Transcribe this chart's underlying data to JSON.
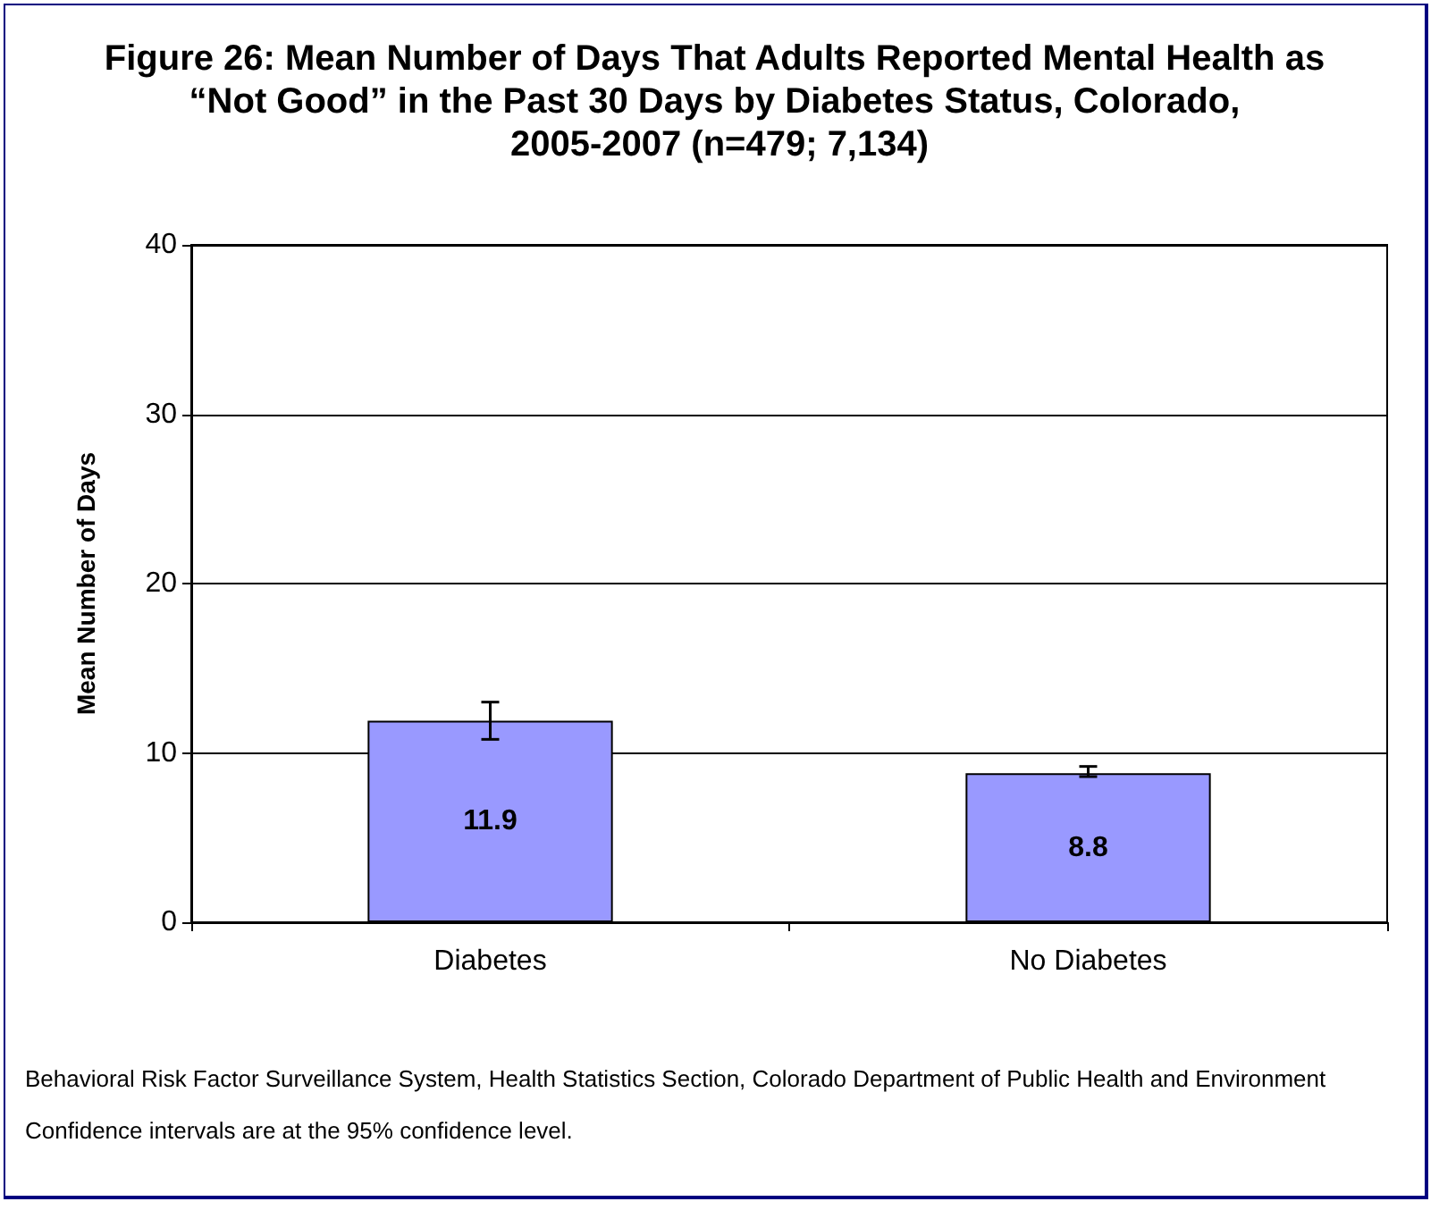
{
  "chart_data": {
    "type": "bar",
    "title": "Figure 26: Mean Number of Days That Adults Reported Mental Health as “Not Good” in the Past 30 Days by Diabetes Status, Colorado, 2005-2007 (n=479; 7,134)",
    "ylabel": "Mean Number of Days",
    "categories": [
      "Diabetes",
      "No Diabetes"
    ],
    "values": [
      11.9,
      8.8
    ],
    "errors": [
      [
        10.8,
        13.0
      ],
      [
        8.6,
        9.2
      ]
    ],
    "color": "#9999ff",
    "ylim": [
      0,
      40
    ],
    "yticks": [
      0,
      10,
      20,
      30,
      40
    ],
    "grid": "y",
    "data_labels": true,
    "annotations": [
      "Behavioral Risk Factor Surveillance System, Health Statistics Section, Colorado Department of Public Health and Environment",
      "Confidence intervals are at the 95% confidence level."
    ]
  }
}
